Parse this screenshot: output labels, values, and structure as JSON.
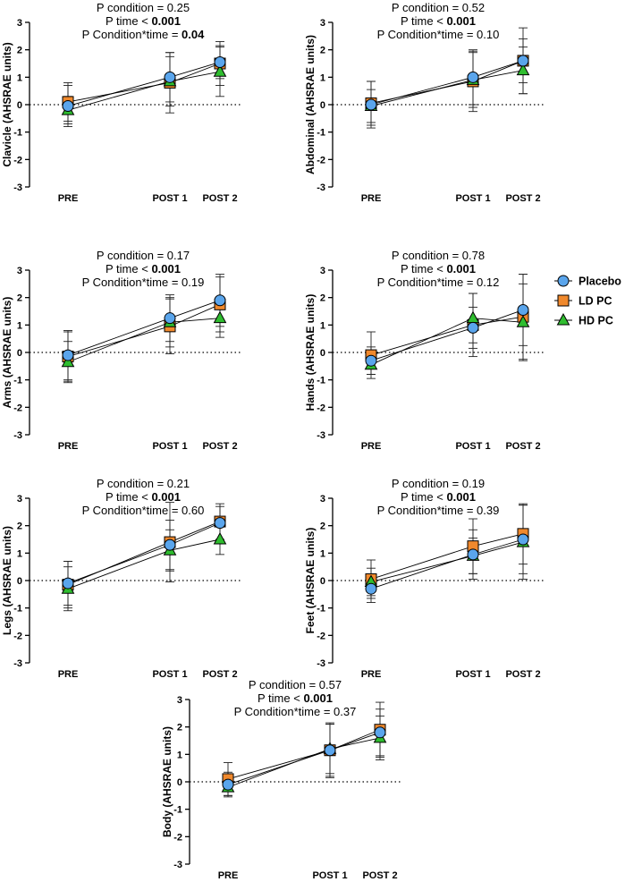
{
  "legend": [
    {
      "name": "Placebo",
      "marker": "circle",
      "color": "#5aa5ec"
    },
    {
      "name": "LD PC",
      "marker": "square",
      "color": "#f0892d"
    },
    {
      "name": "HD PC",
      "marker": "triangle",
      "color": "#2fbd2f"
    }
  ],
  "colors": {
    "placebo": "#5aa5ec",
    "ld_pc": "#f0892d",
    "hd_pc": "#2fbd2f",
    "axis": "#000000"
  },
  "chart_data": [
    {
      "type": "line",
      "panel": "clavicle",
      "ylabel": "Clavicle (AHSRAE units)",
      "stats": {
        "condition": "P condition = 0.25",
        "time_prefix": "P time < ",
        "time_value": "0.001",
        "interaction_prefix": "P Condition*time = ",
        "interaction_value": "0.04"
      },
      "bold_time": true,
      "bold_interaction": true,
      "categories": [
        "PRE",
        "POST 1",
        "POST 2"
      ],
      "ylim": [
        -3,
        3
      ],
      "yticks": [
        -3,
        -2,
        -1,
        0,
        1,
        2,
        3
      ],
      "reference_line": 0,
      "series": [
        {
          "name": "Placebo",
          "values": [
            -0.05,
            1.0,
            1.55
          ],
          "sd": [
            0.75,
            0.9,
            0.6
          ]
        },
        {
          "name": "LD PC",
          "values": [
            0.1,
            0.8,
            1.5
          ],
          "sd": [
            0.7,
            1.1,
            0.8
          ]
        },
        {
          "name": "HD PC",
          "values": [
            -0.2,
            0.85,
            1.2
          ],
          "sd": [
            0.5,
            0.9,
            0.9
          ]
        }
      ]
    },
    {
      "type": "line",
      "panel": "abdominal",
      "ylabel": "Abdominal (AHSRAE units)",
      "stats": {
        "condition": "P condition = 0.52",
        "time_prefix": "P time < ",
        "time_value": "0.001",
        "interaction_prefix": "P Condition*time = ",
        "interaction_value": "0.10"
      },
      "bold_time": true,
      "bold_interaction": false,
      "categories": [
        "PRE",
        "POST 1",
        "POST 2"
      ],
      "ylim": [
        -3,
        3
      ],
      "yticks": [
        -3,
        -2,
        -1,
        0,
        1,
        2,
        3
      ],
      "reference_line": 0,
      "series": [
        {
          "name": "Placebo",
          "values": [
            0.0,
            1.0,
            1.6
          ],
          "sd": [
            0.85,
            1.0,
            0.8
          ]
        },
        {
          "name": "LD PC",
          "values": [
            0.05,
            0.85,
            1.6
          ],
          "sd": [
            0.8,
            1.1,
            1.2
          ]
        },
        {
          "name": "HD PC",
          "values": [
            -0.05,
            0.9,
            1.25
          ],
          "sd": [
            0.6,
            1.0,
            0.85
          ]
        }
      ]
    },
    {
      "type": "line",
      "panel": "arms",
      "ylabel": "Arms (AHSRAE units)",
      "stats": {
        "condition": "P condition = 0.17",
        "time_prefix": "P time < ",
        "time_value": "0.001",
        "interaction_prefix": "P Condition*time = ",
        "interaction_value": "0.19"
      },
      "bold_time": true,
      "bold_interaction": false,
      "categories": [
        "PRE",
        "POST 1",
        "POST 2"
      ],
      "ylim": [
        -3,
        3
      ],
      "yticks": [
        -3,
        -2,
        -1,
        0,
        1,
        2,
        3
      ],
      "reference_line": 0,
      "series": [
        {
          "name": "Placebo",
          "values": [
            -0.1,
            1.25,
            1.9
          ],
          "sd": [
            0.9,
            0.85,
            0.95
          ]
        },
        {
          "name": "LD PC",
          "values": [
            -0.15,
            0.95,
            1.75
          ],
          "sd": [
            0.9,
            1.0,
            1.0
          ]
        },
        {
          "name": "HD PC",
          "values": [
            -0.35,
            1.1,
            1.25
          ],
          "sd": [
            0.75,
            0.9,
            0.7
          ]
        }
      ]
    },
    {
      "type": "line",
      "panel": "hands",
      "ylabel": "Hands (AHSRAE units)",
      "stats": {
        "condition": "P condition = 0.78",
        "time_prefix": "P time < ",
        "time_value": "0.001",
        "interaction_prefix": "P Condition*time = ",
        "interaction_value": "0.12"
      },
      "bold_time": true,
      "bold_interaction": false,
      "categories": [
        "PRE",
        "POST 1",
        "POST 2"
      ],
      "ylim": [
        -3,
        3
      ],
      "yticks": [
        -3,
        -2,
        -1,
        0,
        1,
        2,
        3
      ],
      "reference_line": 0,
      "series": [
        {
          "name": "Placebo",
          "values": [
            -0.3,
            0.9,
            1.55
          ],
          "sd": [
            0.5,
            0.75,
            1.3
          ]
        },
        {
          "name": "LD PC",
          "values": [
            -0.1,
            1.0,
            1.3
          ],
          "sd": [
            0.85,
            1.15,
            1.55
          ]
        },
        {
          "name": "HD PC",
          "values": [
            -0.45,
            1.25,
            1.1
          ],
          "sd": [
            0.35,
            0.9,
            1.4
          ]
        }
      ]
    },
    {
      "type": "line",
      "panel": "legs",
      "ylabel": "Legs (AHSRAE units)",
      "stats": {
        "condition": "P condition = 0.21",
        "time_prefix": "P time < ",
        "time_value": "0.001",
        "interaction_prefix": "P Condition*time = ",
        "interaction_value": "0.60"
      },
      "bold_time": true,
      "bold_interaction": false,
      "categories": [
        "PRE",
        "POST 1",
        "POST 2"
      ],
      "ylim": [
        -3,
        3
      ],
      "yticks": [
        -3,
        -2,
        -1,
        0,
        1,
        2,
        3
      ],
      "reference_line": 0,
      "series": [
        {
          "name": "Placebo",
          "values": [
            -0.1,
            1.3,
            2.1
          ],
          "sd": [
            0.8,
            0.9,
            0.6
          ]
        },
        {
          "name": "LD PC",
          "values": [
            -0.15,
            1.4,
            2.15
          ],
          "sd": [
            0.85,
            1.45,
            0.65
          ]
        },
        {
          "name": "HD PC",
          "values": [
            -0.3,
            1.1,
            1.5
          ],
          "sd": [
            0.8,
            0.75,
            0.55
          ]
        }
      ]
    },
    {
      "type": "line",
      "panel": "feet",
      "ylabel": "Feet (AHSRAE units)",
      "stats": {
        "condition": "P condition = 0.19",
        "time_prefix": "P time < ",
        "time_value": "0.001",
        "interaction_prefix": "P Condition*time = ",
        "interaction_value": "0.39"
      },
      "bold_time": true,
      "bold_interaction": false,
      "categories": [
        "PRE",
        "POST 1",
        "POST 2"
      ],
      "ylim": [
        -3,
        3
      ],
      "yticks": [
        -3,
        -2,
        -1,
        0,
        1,
        2,
        3
      ],
      "reference_line": 0,
      "series": [
        {
          "name": "Placebo",
          "values": [
            -0.3,
            0.95,
            1.5
          ],
          "sd": [
            0.5,
            0.9,
            1.25
          ]
        },
        {
          "name": "LD PC",
          "values": [
            0.05,
            1.25,
            1.7
          ],
          "sd": [
            0.7,
            1.0,
            1.1
          ]
        },
        {
          "name": "HD PC",
          "values": [
            -0.05,
            0.9,
            1.4
          ],
          "sd": [
            0.5,
            0.65,
            1.35
          ]
        }
      ]
    },
    {
      "type": "line",
      "panel": "body",
      "ylabel": "Body (AHSRAE units)",
      "stats": {
        "condition": "P condition = 0.57",
        "time_prefix": "P time < ",
        "time_value": "0.001",
        "interaction_prefix": "P Condition*time = ",
        "interaction_value": "0.37"
      },
      "bold_time": true,
      "bold_interaction": false,
      "categories": [
        "PRE",
        "POST 1",
        "POST 2"
      ],
      "ylim": [
        -3,
        3
      ],
      "yticks": [
        -3,
        -2,
        -1,
        0,
        1,
        2,
        3
      ],
      "reference_line": 0,
      "series": [
        {
          "name": "Placebo",
          "values": [
            -0.1,
            1.15,
            1.8
          ],
          "sd": [
            0.45,
            0.95,
            0.85
          ]
        },
        {
          "name": "LD PC",
          "values": [
            0.1,
            1.15,
            1.9
          ],
          "sd": [
            0.6,
            1.0,
            1.0
          ]
        },
        {
          "name": "HD PC",
          "values": [
            -0.2,
            1.2,
            1.6
          ],
          "sd": [
            0.3,
            0.9,
            0.8
          ]
        }
      ]
    }
  ]
}
